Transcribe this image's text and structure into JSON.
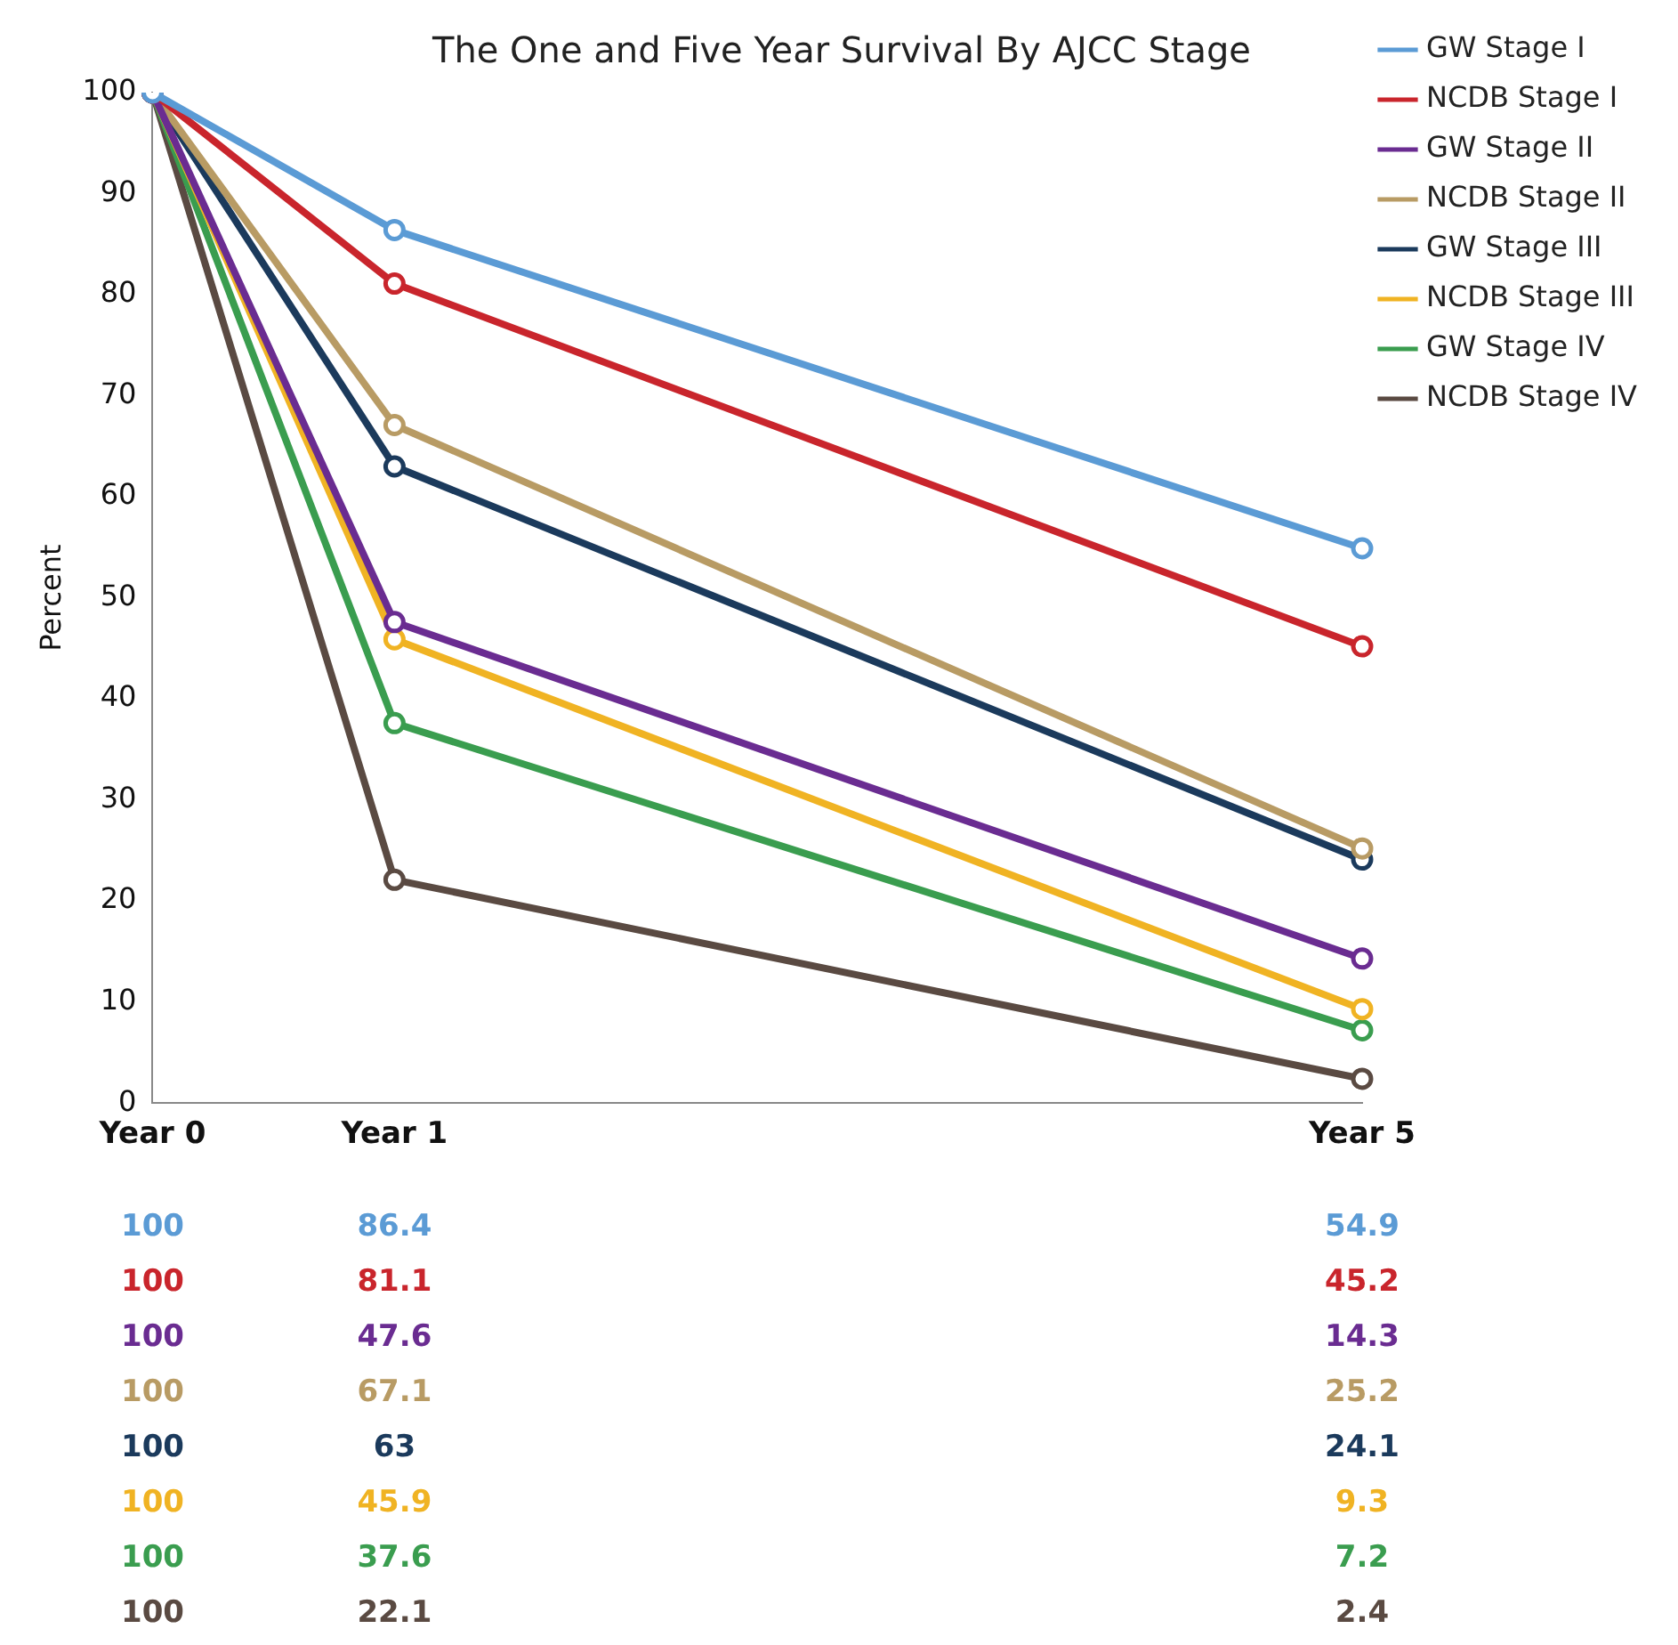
{
  "chart_data": {
    "type": "line",
    "title": "The One and Five Year Survival By AJCC Stage",
    "ylabel": "Percent",
    "categories": [
      "Year 0",
      "Year 1",
      null,
      null,
      null,
      "Year 5"
    ],
    "series": [
      {
        "name": "GW Stage I",
        "color": "#5b9bd5",
        "values": [
          100,
          86.4,
          null,
          null,
          null,
          54.9
        ]
      },
      {
        "name": "NCDB Stage I",
        "color": "#c9252c",
        "values": [
          100,
          81.1,
          null,
          null,
          null,
          45.2
        ]
      },
      {
        "name": "GW Stage II",
        "color": "#6a2c91",
        "values": [
          100,
          47.6,
          null,
          null,
          null,
          14.3
        ]
      },
      {
        "name": "NCDB Stage II",
        "color": "#b89b64",
        "values": [
          100,
          67.1,
          null,
          null,
          null,
          25.2
        ]
      },
      {
        "name": "GW Stage III",
        "color": "#1b3a5c",
        "values": [
          100,
          63,
          null,
          null,
          null,
          24.1
        ]
      },
      {
        "name": "NCDB Stage III",
        "color": "#f0b323",
        "values": [
          100,
          45.9,
          null,
          null,
          null,
          9.3
        ]
      },
      {
        "name": "GW Stage IV",
        "color": "#3a9d4f",
        "values": [
          100,
          37.6,
          null,
          null,
          null,
          7.2
        ]
      },
      {
        "name": "NCDB Stage IV",
        "color": "#5a4a42",
        "values": [
          100,
          22.1,
          null,
          null,
          null,
          2.4
        ]
      }
    ],
    "ylim": [
      0,
      100
    ],
    "yticks": [
      0,
      10,
      20,
      30,
      40,
      50,
      60,
      70,
      80,
      90,
      100
    ],
    "grid": false,
    "legend": "top right",
    "marker": "circle",
    "line_style": "solid",
    "data_labels": true
  }
}
